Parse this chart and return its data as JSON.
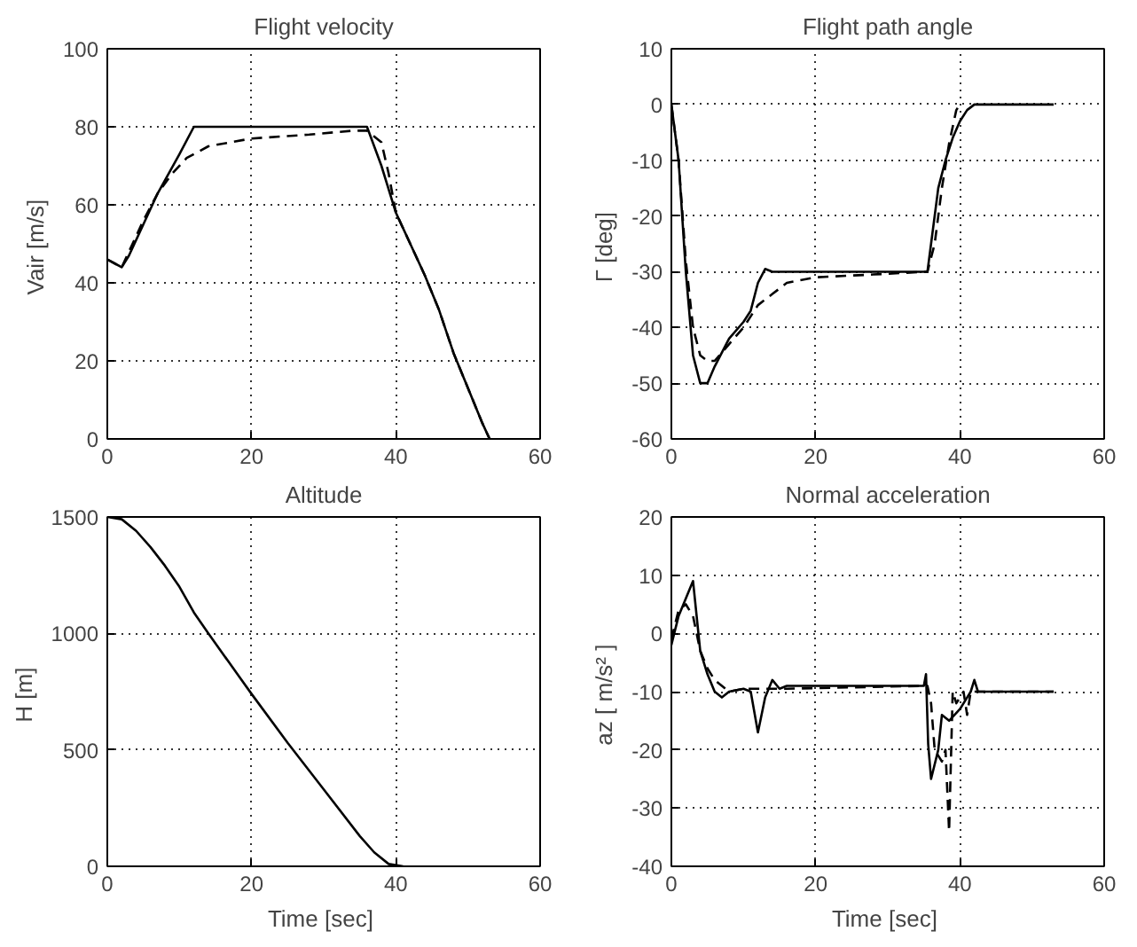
{
  "chart_data": [
    {
      "type": "line",
      "title": "Flight velocity",
      "ylabel": "Vair  [m/s]",
      "xlim": [
        0,
        60
      ],
      "xticks": [
        0,
        20,
        40,
        60
      ],
      "ylim": [
        0,
        100
      ],
      "yticks": [
        0,
        20,
        40,
        60,
        80,
        100
      ],
      "grid": true,
      "series": [
        {
          "color": "#000000",
          "line_style": "solid",
          "x": [
            0,
            1,
            2,
            3,
            5,
            7,
            10,
            12,
            13,
            20,
            30,
            36,
            38,
            40,
            42,
            44,
            46,
            48,
            50,
            52,
            53
          ],
          "values": [
            46,
            45,
            44,
            47,
            55,
            63,
            73,
            80,
            80,
            80,
            80,
            80,
            70,
            58,
            50,
            42,
            33,
            22,
            13,
            4,
            0
          ]
        },
        {
          "color": "#000000",
          "line_style": "dashed",
          "x": [
            0,
            2,
            3,
            5,
            7,
            9,
            11,
            14,
            20,
            28,
            34,
            36,
            38,
            39,
            40,
            42,
            44,
            46,
            48,
            50,
            52,
            53
          ],
          "values": [
            46,
            44,
            48,
            56,
            63,
            68,
            72,
            75,
            77,
            78,
            79,
            79,
            76,
            68,
            58,
            50,
            42,
            33,
            22,
            13,
            4,
            0
          ]
        }
      ]
    },
    {
      "type": "line",
      "title": "Flight path angle",
      "ylabel": "Γ  [deg]",
      "xlim": [
        0,
        60
      ],
      "xticks": [
        0,
        20,
        40,
        60
      ],
      "ylim": [
        -60,
        10
      ],
      "yticks": [
        -60,
        -50,
        -40,
        -30,
        -20,
        -10,
        0,
        10
      ],
      "grid": true,
      "series": [
        {
          "color": "#000000",
          "line_style": "solid",
          "x": [
            0,
            1,
            2,
            3,
            4,
            5,
            6,
            8,
            10,
            11,
            12,
            13,
            14,
            20,
            30,
            35.5,
            36,
            37,
            38,
            39,
            40,
            41,
            42,
            53
          ],
          "values": [
            0,
            -10,
            -30,
            -45,
            -50,
            -50,
            -47,
            -42,
            -39,
            -37,
            -32,
            -29.5,
            -30,
            -30,
            -30,
            -30,
            -25,
            -15,
            -10,
            -6,
            -3,
            -1,
            0,
            0
          ]
        },
        {
          "color": "#000000",
          "line_style": "dashed",
          "x": [
            0,
            1,
            2,
            3,
            4,
            5,
            6,
            8,
            10,
            12,
            14,
            16,
            20,
            28,
            35.5,
            36.5,
            37.5,
            38.5,
            39.5,
            40
          ],
          "values": [
            0,
            -10,
            -28,
            -40,
            -45,
            -46,
            -46,
            -43,
            -40,
            -36,
            -34,
            -32,
            -31,
            -30.5,
            -30,
            -25,
            -15,
            -7,
            -1,
            0
          ]
        }
      ]
    },
    {
      "type": "line",
      "title": "Altitude",
      "xlabel": "Time  [sec]",
      "ylabel": "H  [m]",
      "xlim": [
        0,
        60
      ],
      "xticks": [
        0,
        20,
        40,
        60
      ],
      "ylim": [
        0,
        1500
      ],
      "yticks": [
        0,
        500,
        1000,
        1500
      ],
      "grid": true,
      "series": [
        {
          "color": "#000000",
          "line_style": "solid",
          "x": [
            0,
            2,
            4,
            6,
            8,
            10,
            12,
            14,
            20,
            25,
            30,
            35,
            37,
            39,
            41
          ],
          "values": [
            1500,
            1490,
            1440,
            1370,
            1290,
            1200,
            1090,
            1000,
            740,
            530,
            330,
            130,
            60,
            10,
            0
          ]
        }
      ]
    },
    {
      "type": "line",
      "title": "Normal acceleration",
      "xlabel": "Time  [sec]",
      "ylabel": "az  [ m/s² ]",
      "xlim": [
        0,
        60
      ],
      "xticks": [
        0,
        20,
        40,
        60
      ],
      "ylim": [
        -40,
        20
      ],
      "yticks": [
        -40,
        -30,
        -20,
        -10,
        0,
        10,
        20
      ],
      "grid": true,
      "series": [
        {
          "color": "#000000",
          "line_style": "solid",
          "x": [
            0,
            1,
            2,
            3,
            3.5,
            4,
            5,
            6,
            7,
            8,
            10,
            11,
            12,
            13,
            14,
            15,
            16,
            20,
            35,
            35.3,
            35.6,
            36,
            37,
            37.5,
            38.5,
            40,
            41,
            41.5,
            42,
            42.5,
            53
          ],
          "values": [
            -2,
            3,
            6,
            9,
            3,
            -3,
            -7,
            -10,
            -11,
            -10,
            -9.5,
            -10,
            -17,
            -11,
            -8,
            -9.5,
            -9,
            -9,
            -9,
            -7,
            -19,
            -25,
            -20,
            -14,
            -15,
            -13,
            -11,
            -10,
            -8,
            -10,
            -10
          ]
        },
        {
          "color": "#000000",
          "line_style": "dashed",
          "x": [
            0,
            1,
            2,
            3,
            4,
            5,
            6,
            8,
            10,
            12,
            14,
            16,
            35.5,
            36,
            36.5,
            37.5,
            38,
            38.5,
            39,
            39.5,
            40.5,
            41,
            41.5,
            53
          ],
          "values": [
            -1,
            4,
            5,
            3,
            -3,
            -6,
            -8,
            -10,
            -9.5,
            -9.5,
            -9.5,
            -9.5,
            -9,
            -12,
            -20,
            -22,
            -20,
            -34,
            -10,
            -12,
            -10,
            -14,
            -10,
            -10
          ]
        }
      ]
    }
  ]
}
